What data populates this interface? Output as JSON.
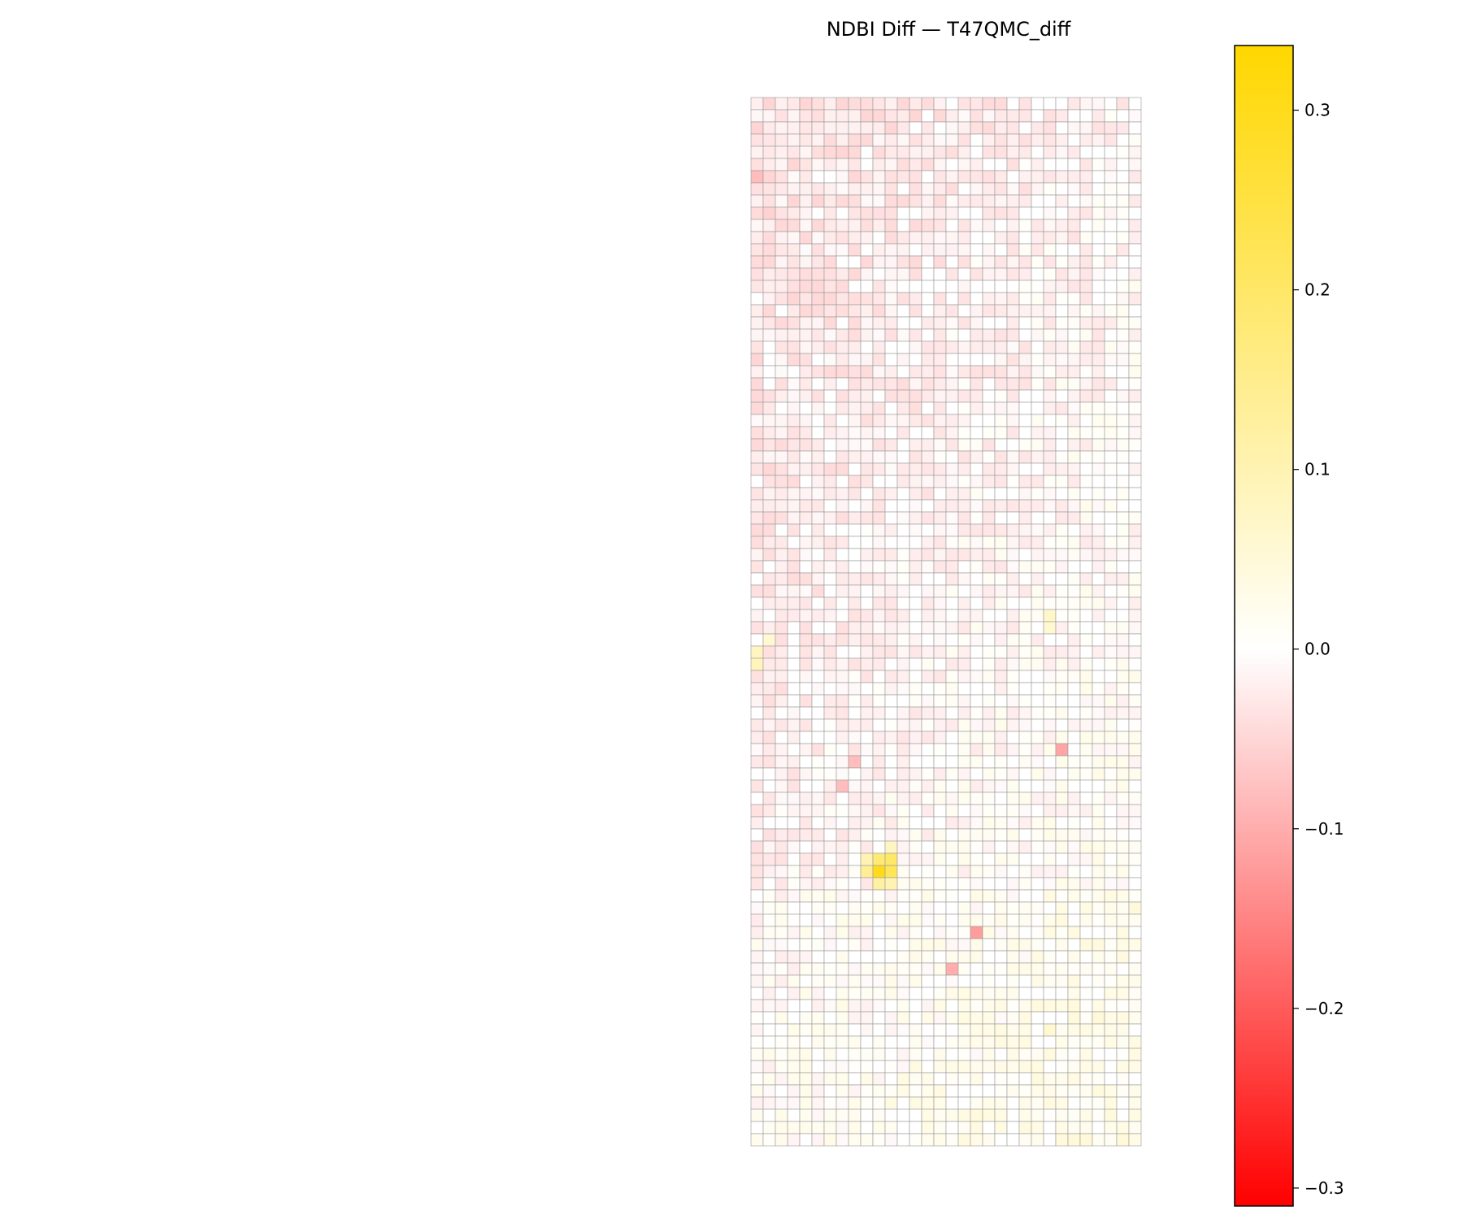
{
  "chart_data": {
    "type": "heatmap",
    "title": "NDBI Diff — T47QMC_diff",
    "xlabel": "",
    "ylabel": "",
    "axes_visible": false,
    "grid_lines": true,
    "grid_line_color": "#999999",
    "grid": {
      "rows": 86,
      "cols": 32,
      "value_range": [
        -0.15,
        0.3
      ],
      "hotspots": [
        {
          "row": 63,
          "col": 10,
          "value": 0.3
        },
        {
          "row": 63,
          "col": 11,
          "value": 0.22
        },
        {
          "row": 62,
          "col": 10,
          "value": 0.18
        },
        {
          "row": 62,
          "col": 11,
          "value": 0.2
        },
        {
          "row": 64,
          "col": 10,
          "value": 0.12
        },
        {
          "row": 61,
          "col": 11,
          "value": 0.08
        },
        {
          "row": 62,
          "col": 9,
          "value": 0.1
        },
        {
          "row": 63,
          "col": 9,
          "value": 0.14
        },
        {
          "row": 64,
          "col": 11,
          "value": 0.1
        },
        {
          "row": 53,
          "col": 25,
          "value": -0.11
        },
        {
          "row": 68,
          "col": 18,
          "value": -0.12
        },
        {
          "row": 71,
          "col": 16,
          "value": -0.1
        },
        {
          "row": 6,
          "col": 0,
          "value": -0.08
        },
        {
          "row": 46,
          "col": 0,
          "value": 0.09
        },
        {
          "row": 45,
          "col": 0,
          "value": 0.08
        },
        {
          "row": 44,
          "col": 1,
          "value": 0.06
        },
        {
          "row": 42,
          "col": 24,
          "value": 0.07
        },
        {
          "row": 43,
          "col": 24,
          "value": 0.06
        },
        {
          "row": 76,
          "col": 24,
          "value": 0.06
        },
        {
          "row": 75,
          "col": 28,
          "value": 0.05
        },
        {
          "row": 56,
          "col": 7,
          "value": -0.08
        },
        {
          "row": 54,
          "col": 8,
          "value": -0.08
        }
      ]
    },
    "colorbar": {
      "colormap": [
        "#ff0000",
        "#ffffff",
        "#ffd700"
      ],
      "vmin": -0.31,
      "vmax": 0.336,
      "ticks": [
        0.3,
        0.2,
        0.1,
        0.0,
        -0.1,
        -0.2,
        -0.3
      ],
      "tick_labels": [
        "0.3",
        "0.2",
        "0.1",
        "0.0",
        "−0.1",
        "−0.2",
        "−0.3"
      ]
    }
  }
}
